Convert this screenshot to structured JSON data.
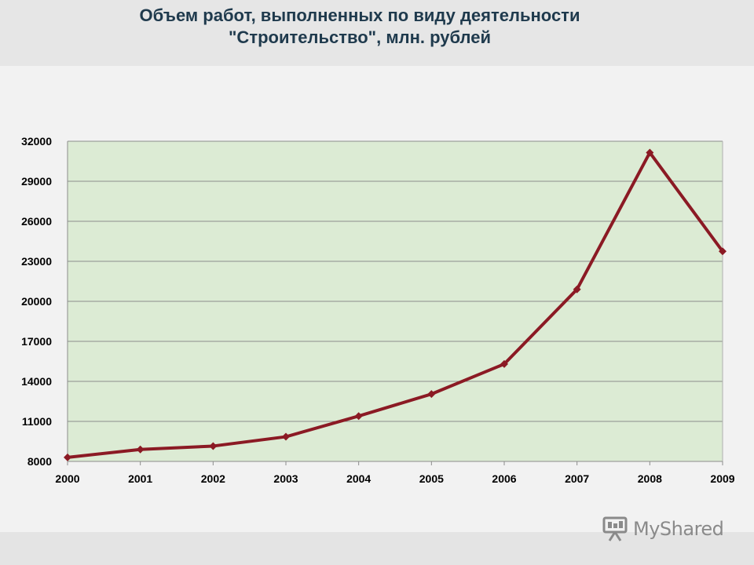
{
  "chart_data": {
    "type": "line",
    "title_line1": "Объем работ, выполненных по виду деятельности",
    "title_line2": "\"Строительство\", млн. рублей",
    "x": [
      "2000",
      "2001",
      "2002",
      "2003",
      "2004",
      "2005",
      "2006",
      "2007",
      "2008",
      "2009"
    ],
    "y": [
      8300,
      8900,
      9150,
      9850,
      11400,
      13050,
      15300,
      20900,
      31150,
      23750
    ],
    "yticks": [
      8000,
      11000,
      14000,
      17000,
      20000,
      23000,
      26000,
      29000,
      32000
    ],
    "ylim": [
      8000,
      32000
    ],
    "grid": true,
    "legend": "none",
    "colors": {
      "line": "#8b1a24",
      "plot_bg": "#dcebd4",
      "grid": "#8c8c8c"
    }
  },
  "watermark": {
    "text": "MyShared",
    "icon": "presentation-board-icon"
  }
}
